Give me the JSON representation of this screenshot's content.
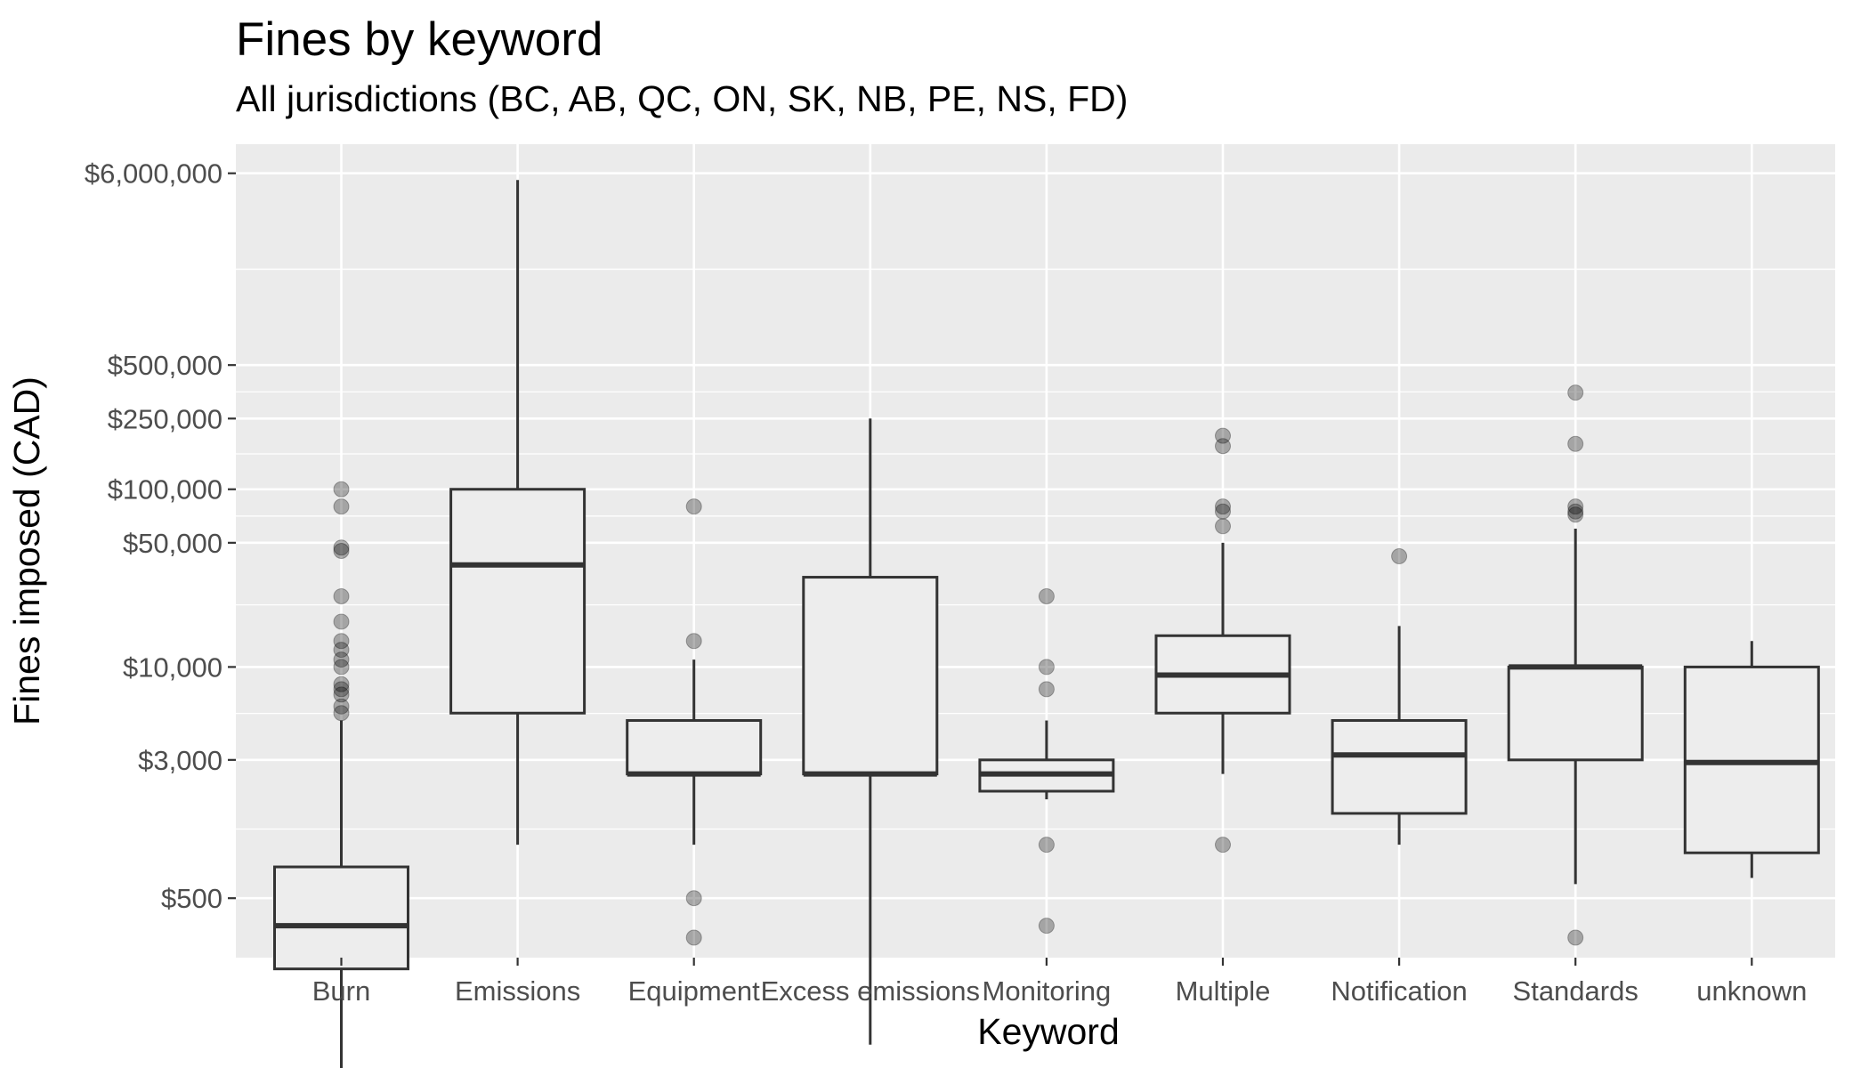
{
  "chart_data": {
    "type": "boxplot",
    "title": "Fines by keyword",
    "subtitle": "All jurisdictions (BC, AB, QC, ON, SK, NB, PE, NS, FD)",
    "xlabel": "Keyword",
    "ylabel": "Fines imposed (CAD)",
    "y_scale": "log10",
    "grid": true,
    "y_ticks": [
      {
        "value": 500,
        "label": "$500"
      },
      {
        "value": 3000,
        "label": "$3,000"
      },
      {
        "value": 10000,
        "label": "$10,000"
      },
      {
        "value": 50000,
        "label": "$50,000"
      },
      {
        "value": 100000,
        "label": "$100,000"
      },
      {
        "value": 250000,
        "label": "$250,000"
      },
      {
        "value": 500000,
        "label": "$500,000"
      },
      {
        "value": 6000000,
        "label": "$6,000,000"
      }
    ],
    "categories": [
      "Burn",
      "Emissions",
      "Equipment",
      "Excess emissions",
      "Monitoring",
      "Multiple",
      "Notification",
      "Standards",
      "unknown"
    ],
    "boxes": [
      {
        "category": "Burn",
        "whisker_low": 40,
        "q1": 200,
        "median": 350,
        "q3": 750,
        "whisker_high": 5000,
        "outliers": [
          100000,
          80000,
          47000,
          45000,
          25000,
          18000,
          14000,
          12500,
          11000,
          10000,
          8000,
          7500,
          7000,
          6000,
          5500
        ]
      },
      {
        "category": "Emissions",
        "whisker_low": 1000,
        "q1": 5500,
        "median": 37500,
        "q3": 100000,
        "whisker_high": 5500000,
        "outliers": []
      },
      {
        "category": "Equipment",
        "whisker_low": 1000,
        "q1": 2500,
        "median": 2500,
        "q3": 5000,
        "whisker_high": 11000,
        "outliers": [
          80000,
          14000,
          500,
          300
        ]
      },
      {
        "category": "Excess emissions",
        "whisker_low": 75,
        "q1": 2500,
        "median": 2500,
        "q3": 32000,
        "whisker_high": 250000,
        "outliers": []
      },
      {
        "category": "Monitoring",
        "whisker_low": 1800,
        "q1": 2000,
        "median": 2500,
        "q3": 3000,
        "whisker_high": 5000,
        "outliers": [
          25000,
          10000,
          7500,
          1000,
          350
        ]
      },
      {
        "category": "Multiple",
        "whisker_low": 2500,
        "q1": 5500,
        "median": 9000,
        "q3": 15000,
        "whisker_high": 50000,
        "outliers": [
          200000,
          175000,
          80000,
          75000,
          62000,
          1000
        ]
      },
      {
        "category": "Notification",
        "whisker_low": 1000,
        "q1": 1500,
        "median": 3200,
        "q3": 5000,
        "whisker_high": 17000,
        "outliers": [
          42000
        ]
      },
      {
        "category": "Standards",
        "whisker_low": 600,
        "q1": 3000,
        "median": 10000,
        "q3": 10000,
        "whisker_high": 60000,
        "outliers": [
          350000,
          180000,
          80000,
          75000,
          72000,
          300
        ]
      },
      {
        "category": "unknown",
        "whisker_low": 650,
        "q1": 900,
        "median": 2900,
        "q3": 10000,
        "whisker_high": 14000,
        "outliers": []
      }
    ]
  }
}
